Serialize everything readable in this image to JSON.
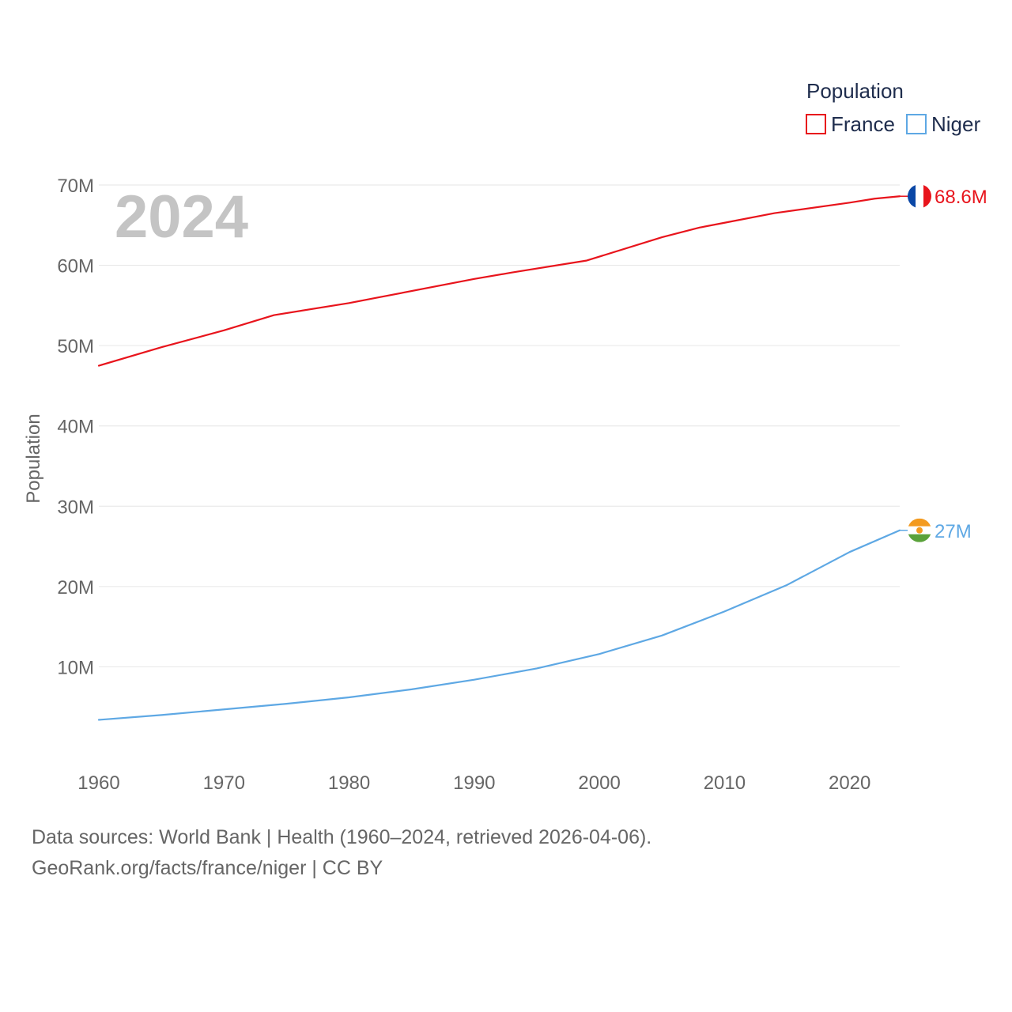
{
  "chart_data": {
    "type": "line",
    "title": "",
    "year_label": "2024",
    "ylabel": "Population",
    "xlabel": "",
    "xlim": [
      1960,
      2024
    ],
    "ylim": [
      0,
      70000000
    ],
    "x_ticks": [
      1960,
      1970,
      1980,
      1990,
      2000,
      2010,
      2020
    ],
    "y_ticks": [
      {
        "value": 10000000,
        "label": "10M"
      },
      {
        "value": 20000000,
        "label": "20M"
      },
      {
        "value": 30000000,
        "label": "30M"
      },
      {
        "value": 40000000,
        "label": "40M"
      },
      {
        "value": 50000000,
        "label": "50M"
      },
      {
        "value": 60000000,
        "label": "60M"
      },
      {
        "value": 70000000,
        "label": "70M"
      }
    ],
    "legend": {
      "title": "Population",
      "placement": "top-right"
    },
    "grid": true,
    "series": [
      {
        "name": "France",
        "color": "#e8141c",
        "end_label": "68.6M",
        "flag": "france-flag",
        "points": [
          [
            1960,
            47.5
          ],
          [
            1965,
            49.8
          ],
          [
            1970,
            51.9
          ],
          [
            1974,
            53.8
          ],
          [
            1980,
            55.3
          ],
          [
            1982,
            55.9
          ],
          [
            1990,
            58.3
          ],
          [
            1993,
            59.1
          ],
          [
            1999,
            60.6
          ],
          [
            2005,
            63.5
          ],
          [
            2008,
            64.7
          ],
          [
            2010,
            65.3
          ],
          [
            2014,
            66.5
          ],
          [
            2020,
            67.8
          ],
          [
            2022,
            68.3
          ],
          [
            2024,
            68.6
          ]
        ]
      },
      {
        "name": "Niger",
        "color": "#5ea8e4",
        "end_label": "27M",
        "flag": "niger-flag",
        "points": [
          [
            1960,
            3.4
          ],
          [
            1965,
            4.0
          ],
          [
            1970,
            4.7
          ],
          [
            1975,
            5.4
          ],
          [
            1980,
            6.2
          ],
          [
            1985,
            7.2
          ],
          [
            1990,
            8.4
          ],
          [
            1995,
            9.8
          ],
          [
            2000,
            11.6
          ],
          [
            2005,
            13.9
          ],
          [
            2010,
            16.9
          ],
          [
            2015,
            20.2
          ],
          [
            2020,
            24.3
          ],
          [
            2024,
            27.0
          ]
        ]
      }
    ]
  },
  "footer": {
    "line1": "Data sources: World Bank | Health (1960–2024, retrieved 2026-04-06).",
    "line2": "GeoRank.org/facts/france/niger | CC BY"
  },
  "colors": {
    "grid": "#e6e6e6",
    "tick_text": "#666666",
    "legend_text": "#1f2d4d",
    "flag_france_blue": "#0a47a6",
    "flag_france_white": "#ffffff",
    "flag_france_red": "#e8141c",
    "flag_niger_orange": "#f39a1f",
    "flag_niger_white": "#ffffff",
    "flag_niger_green": "#5aa23a"
  }
}
